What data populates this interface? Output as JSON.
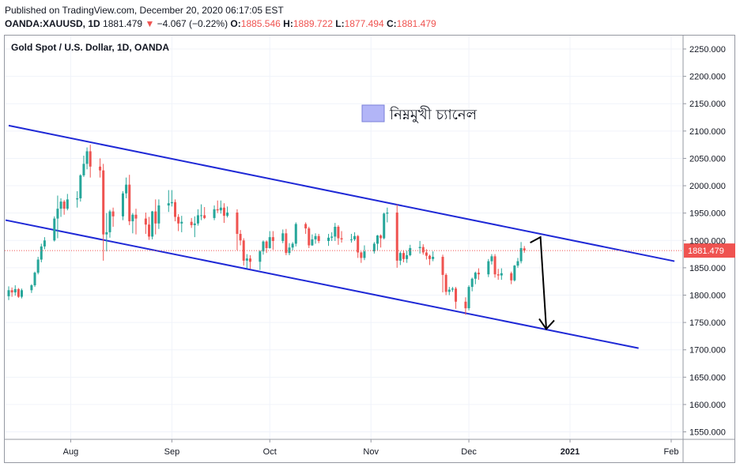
{
  "header": {
    "published": "Published on TradingView.com, December 20, 2020 06:17:05 EST",
    "symbol": "OANDA:XAUUSD, 1D",
    "last": "1881.479",
    "change_arrow": "▼",
    "change": "−4.067 (−0.22%)",
    "o_label": "O:",
    "o_value": "1885.546",
    "h_label": "H:",
    "h_value": "1889.722",
    "l_label": "L:",
    "l_value": "1877.494",
    "c_label": "C:",
    "c_value": "1881.479"
  },
  "chart_title": "Gold Spot / U.S. Dollar, 1D, OANDA",
  "annotation": {
    "text": "নিম্নমুখী চ্যানেল"
  },
  "price_label": "1881.479",
  "colors": {
    "up": "#26a69a",
    "down": "#ef5350",
    "channel": "#1f29d6",
    "legend_fill": "#b2b5f7"
  },
  "chart_data": {
    "type": "candlestick",
    "title": "Gold Spot / U.S. Dollar, 1D, OANDA",
    "ylim": [
      1520,
      2280
    ],
    "y_ticks": [
      "2250.000",
      "2200.000",
      "2150.000",
      "2100.000",
      "2050.000",
      "2000.000",
      "1950.000",
      "1900.000",
      "1850.000",
      "1800.000",
      "1750.000",
      "1700.000",
      "1650.000",
      "1600.000",
      "1550.000"
    ],
    "x_ticks": [
      "Aug",
      "Sep",
      "Oct",
      "Nov",
      "Dec",
      "2021",
      "Feb"
    ],
    "last_price": 1881.479,
    "candles": [
      {
        "d": "2020-07-13",
        "o": 1798,
        "h": 1816,
        "l": 1791,
        "c": 1809
      },
      {
        "d": "2020-07-14",
        "o": 1809,
        "h": 1814,
        "l": 1797,
        "c": 1805
      },
      {
        "d": "2020-07-15",
        "o": 1805,
        "h": 1818,
        "l": 1799,
        "c": 1811
      },
      {
        "d": "2020-07-16",
        "o": 1811,
        "h": 1813,
        "l": 1795,
        "c": 1797
      },
      {
        "d": "2020-07-17",
        "o": 1797,
        "h": 1812,
        "l": 1794,
        "c": 1809
      },
      {
        "d": "2020-07-20",
        "o": 1809,
        "h": 1820,
        "l": 1804,
        "c": 1818
      },
      {
        "d": "2020-07-21",
        "o": 1818,
        "h": 1843,
        "l": 1815,
        "c": 1841
      },
      {
        "d": "2020-07-22",
        "o": 1841,
        "h": 1870,
        "l": 1838,
        "c": 1865
      },
      {
        "d": "2020-07-23",
        "o": 1865,
        "h": 1894,
        "l": 1860,
        "c": 1889
      },
      {
        "d": "2020-07-24",
        "o": 1889,
        "h": 1906,
        "l": 1884,
        "c": 1900
      },
      {
        "d": "2020-07-27",
        "o": 1900,
        "h": 1944,
        "l": 1898,
        "c": 1940
      },
      {
        "d": "2020-07-28",
        "o": 1940,
        "h": 1982,
        "l": 1904,
        "c": 1958
      },
      {
        "d": "2020-07-29",
        "o": 1958,
        "h": 1977,
        "l": 1943,
        "c": 1971
      },
      {
        "d": "2020-07-30",
        "o": 1971,
        "h": 1974,
        "l": 1947,
        "c": 1958
      },
      {
        "d": "2020-07-31",
        "o": 1958,
        "h": 1985,
        "l": 1955,
        "c": 1975
      },
      {
        "d": "2020-08-03",
        "o": 1975,
        "h": 1990,
        "l": 1960,
        "c": 1977
      },
      {
        "d": "2020-08-04",
        "o": 1977,
        "h": 2021,
        "l": 1971,
        "c": 2019
      },
      {
        "d": "2020-08-05",
        "o": 2019,
        "h": 2055,
        "l": 2016,
        "c": 2040
      },
      {
        "d": "2020-08-06",
        "o": 2040,
        "h": 2070,
        "l": 2030,
        "c": 2063
      },
      {
        "d": "2020-08-07",
        "o": 2063,
        "h": 2075,
        "l": 2015,
        "c": 2035
      },
      {
        "d": "2020-08-10",
        "o": 2035,
        "h": 2050,
        "l": 2015,
        "c": 2028
      },
      {
        "d": "2020-08-11",
        "o": 2028,
        "h": 2040,
        "l": 1863,
        "c": 1911
      },
      {
        "d": "2020-08-12",
        "o": 1911,
        "h": 1950,
        "l": 1880,
        "c": 1915
      },
      {
        "d": "2020-08-13",
        "o": 1915,
        "h": 1956,
        "l": 1905,
        "c": 1953
      },
      {
        "d": "2020-08-14",
        "o": 1953,
        "h": 1960,
        "l": 1925,
        "c": 1944
      },
      {
        "d": "2020-08-17",
        "o": 1944,
        "h": 1990,
        "l": 1937,
        "c": 1986
      },
      {
        "d": "2020-08-18",
        "o": 1986,
        "h": 2015,
        "l": 1977,
        "c": 2002
      },
      {
        "d": "2020-08-19",
        "o": 2002,
        "h": 2020,
        "l": 1928,
        "c": 1935
      },
      {
        "d": "2020-08-20",
        "o": 1935,
        "h": 1950,
        "l": 1913,
        "c": 1947
      },
      {
        "d": "2020-08-21",
        "o": 1947,
        "h": 1958,
        "l": 1911,
        "c": 1940
      },
      {
        "d": "2020-08-24",
        "o": 1940,
        "h": 1951,
        "l": 1912,
        "c": 1929
      },
      {
        "d": "2020-08-25",
        "o": 1929,
        "h": 1943,
        "l": 1901,
        "c": 1907
      },
      {
        "d": "2020-08-26",
        "o": 1907,
        "h": 1954,
        "l": 1902,
        "c": 1953
      },
      {
        "d": "2020-08-27",
        "o": 1953,
        "h": 1975,
        "l": 1911,
        "c": 1931
      },
      {
        "d": "2020-08-28",
        "o": 1931,
        "h": 1975,
        "l": 1921,
        "c": 1964
      },
      {
        "d": "2020-08-31",
        "o": 1964,
        "h": 1992,
        "l": 1952,
        "c": 1968
      },
      {
        "d": "2020-09-01",
        "o": 1968,
        "h": 1992,
        "l": 1962,
        "c": 1970
      },
      {
        "d": "2020-09-02",
        "o": 1970,
        "h": 1975,
        "l": 1935,
        "c": 1943
      },
      {
        "d": "2020-09-03",
        "o": 1943,
        "h": 1948,
        "l": 1917,
        "c": 1931
      },
      {
        "d": "2020-09-04",
        "o": 1931,
        "h": 1945,
        "l": 1915,
        "c": 1934
      },
      {
        "d": "2020-09-07",
        "o": 1934,
        "h": 1941,
        "l": 1923,
        "c": 1928
      },
      {
        "d": "2020-09-08",
        "o": 1928,
        "h": 1944,
        "l": 1906,
        "c": 1931
      },
      {
        "d": "2020-09-09",
        "o": 1931,
        "h": 1957,
        "l": 1927,
        "c": 1946
      },
      {
        "d": "2020-09-10",
        "o": 1946,
        "h": 1966,
        "l": 1937,
        "c": 1946
      },
      {
        "d": "2020-09-11",
        "o": 1946,
        "h": 1961,
        "l": 1939,
        "c": 1941
      },
      {
        "d": "2020-09-14",
        "o": 1941,
        "h": 1964,
        "l": 1937,
        "c": 1957
      },
      {
        "d": "2020-09-15",
        "o": 1957,
        "h": 1973,
        "l": 1950,
        "c": 1955
      },
      {
        "d": "2020-09-16",
        "o": 1955,
        "h": 1973,
        "l": 1949,
        "c": 1960
      },
      {
        "d": "2020-09-17",
        "o": 1960,
        "h": 1968,
        "l": 1932,
        "c": 1945
      },
      {
        "d": "2020-09-18",
        "o": 1945,
        "h": 1962,
        "l": 1942,
        "c": 1951
      },
      {
        "d": "2020-09-21",
        "o": 1951,
        "h": 1957,
        "l": 1882,
        "c": 1912
      },
      {
        "d": "2020-09-22",
        "o": 1912,
        "h": 1919,
        "l": 1891,
        "c": 1900
      },
      {
        "d": "2020-09-23",
        "o": 1900,
        "h": 1904,
        "l": 1854,
        "c": 1863
      },
      {
        "d": "2020-09-24",
        "o": 1863,
        "h": 1875,
        "l": 1849,
        "c": 1867
      },
      {
        "d": "2020-09-25",
        "o": 1867,
        "h": 1873,
        "l": 1848,
        "c": 1861
      },
      {
        "d": "2020-09-28",
        "o": 1861,
        "h": 1882,
        "l": 1846,
        "c": 1880
      },
      {
        "d": "2020-09-29",
        "o": 1880,
        "h": 1900,
        "l": 1874,
        "c": 1898
      },
      {
        "d": "2020-09-30",
        "o": 1898,
        "h": 1900,
        "l": 1877,
        "c": 1886
      },
      {
        "d": "2020-10-01",
        "o": 1886,
        "h": 1917,
        "l": 1885,
        "c": 1906
      },
      {
        "d": "2020-10-02",
        "o": 1906,
        "h": 1917,
        "l": 1883,
        "c": 1899
      },
      {
        "d": "2020-10-05",
        "o": 1899,
        "h": 1920,
        "l": 1895,
        "c": 1913
      },
      {
        "d": "2020-10-06",
        "o": 1913,
        "h": 1921,
        "l": 1873,
        "c": 1877
      },
      {
        "d": "2020-10-07",
        "o": 1877,
        "h": 1895,
        "l": 1873,
        "c": 1887
      },
      {
        "d": "2020-10-08",
        "o": 1887,
        "h": 1897,
        "l": 1882,
        "c": 1894
      },
      {
        "d": "2020-10-09",
        "o": 1894,
        "h": 1933,
        "l": 1889,
        "c": 1930
      },
      {
        "d": "2020-10-12",
        "o": 1930,
        "h": 1933,
        "l": 1912,
        "c": 1922
      },
      {
        "d": "2020-10-13",
        "o": 1922,
        "h": 1925,
        "l": 1886,
        "c": 1891
      },
      {
        "d": "2020-10-14",
        "o": 1891,
        "h": 1911,
        "l": 1890,
        "c": 1902
      },
      {
        "d": "2020-10-15",
        "o": 1902,
        "h": 1913,
        "l": 1894,
        "c": 1908
      },
      {
        "d": "2020-10-16",
        "o": 1908,
        "h": 1912,
        "l": 1895,
        "c": 1899
      },
      {
        "d": "2020-10-19",
        "o": 1899,
        "h": 1912,
        "l": 1890,
        "c": 1905
      },
      {
        "d": "2020-10-20",
        "o": 1905,
        "h": 1915,
        "l": 1899,
        "c": 1907
      },
      {
        "d": "2020-10-21",
        "o": 1907,
        "h": 1932,
        "l": 1899,
        "c": 1925
      },
      {
        "d": "2020-10-22",
        "o": 1925,
        "h": 1928,
        "l": 1892,
        "c": 1904
      },
      {
        "d": "2020-10-23",
        "o": 1904,
        "h": 1917,
        "l": 1896,
        "c": 1902
      },
      {
        "d": "2020-10-26",
        "o": 1902,
        "h": 1912,
        "l": 1896,
        "c": 1902
      },
      {
        "d": "2020-10-27",
        "o": 1902,
        "h": 1915,
        "l": 1899,
        "c": 1908
      },
      {
        "d": "2020-10-28",
        "o": 1908,
        "h": 1910,
        "l": 1868,
        "c": 1878
      },
      {
        "d": "2020-10-29",
        "o": 1878,
        "h": 1880,
        "l": 1859,
        "c": 1868
      },
      {
        "d": "2020-10-30",
        "o": 1868,
        "h": 1891,
        "l": 1864,
        "c": 1880
      },
      {
        "d": "2020-11-02",
        "o": 1880,
        "h": 1897,
        "l": 1876,
        "c": 1894
      },
      {
        "d": "2020-11-03",
        "o": 1894,
        "h": 1910,
        "l": 1882,
        "c": 1909
      },
      {
        "d": "2020-11-04",
        "o": 1909,
        "h": 1911,
        "l": 1887,
        "c": 1904
      },
      {
        "d": "2020-11-05",
        "o": 1904,
        "h": 1951,
        "l": 1902,
        "c": 1949
      },
      {
        "d": "2020-11-06",
        "o": 1949,
        "h": 1960,
        "l": 1933,
        "c": 1951
      },
      {
        "d": "2020-11-09",
        "o": 1951,
        "h": 1966,
        "l": 1850,
        "c": 1863
      },
      {
        "d": "2020-11-10",
        "o": 1863,
        "h": 1880,
        "l": 1855,
        "c": 1877
      },
      {
        "d": "2020-11-11",
        "o": 1877,
        "h": 1882,
        "l": 1860,
        "c": 1866
      },
      {
        "d": "2020-11-12",
        "o": 1866,
        "h": 1881,
        "l": 1859,
        "c": 1873
      },
      {
        "d": "2020-11-13",
        "o": 1873,
        "h": 1892,
        "l": 1871,
        "c": 1886
      },
      {
        "d": "2020-11-16",
        "o": 1886,
        "h": 1899,
        "l": 1876,
        "c": 1888
      },
      {
        "d": "2020-11-17",
        "o": 1888,
        "h": 1893,
        "l": 1874,
        "c": 1878
      },
      {
        "d": "2020-11-18",
        "o": 1878,
        "h": 1884,
        "l": 1865,
        "c": 1872
      },
      {
        "d": "2020-11-19",
        "o": 1872,
        "h": 1874,
        "l": 1855,
        "c": 1866
      },
      {
        "d": "2020-11-20",
        "o": 1866,
        "h": 1880,
        "l": 1862,
        "c": 1870
      },
      {
        "d": "2020-11-23",
        "o": 1870,
        "h": 1874,
        "l": 1805,
        "c": 1837
      },
      {
        "d": "2020-11-24",
        "o": 1837,
        "h": 1840,
        "l": 1800,
        "c": 1806
      },
      {
        "d": "2020-11-25",
        "o": 1806,
        "h": 1815,
        "l": 1800,
        "c": 1810
      },
      {
        "d": "2020-11-26",
        "o": 1810,
        "h": 1815,
        "l": 1806,
        "c": 1812
      },
      {
        "d": "2020-11-27",
        "o": 1812,
        "h": 1815,
        "l": 1775,
        "c": 1788
      },
      {
        "d": "2020-11-30",
        "o": 1788,
        "h": 1796,
        "l": 1764,
        "c": 1776
      },
      {
        "d": "2020-12-01",
        "o": 1776,
        "h": 1818,
        "l": 1772,
        "c": 1815
      },
      {
        "d": "2020-12-02",
        "o": 1815,
        "h": 1832,
        "l": 1807,
        "c": 1830
      },
      {
        "d": "2020-12-03",
        "o": 1830,
        "h": 1843,
        "l": 1820,
        "c": 1841
      },
      {
        "d": "2020-12-04",
        "o": 1841,
        "h": 1849,
        "l": 1828,
        "c": 1838
      },
      {
        "d": "2020-12-07",
        "o": 1838,
        "h": 1866,
        "l": 1833,
        "c": 1862
      },
      {
        "d": "2020-12-08",
        "o": 1862,
        "h": 1875,
        "l": 1856,
        "c": 1871
      },
      {
        "d": "2020-12-09",
        "o": 1871,
        "h": 1875,
        "l": 1832,
        "c": 1838
      },
      {
        "d": "2020-12-10",
        "o": 1838,
        "h": 1848,
        "l": 1828,
        "c": 1836
      },
      {
        "d": "2020-12-11",
        "o": 1836,
        "h": 1849,
        "l": 1828,
        "c": 1840
      },
      {
        "d": "2020-12-14",
        "o": 1840,
        "h": 1843,
        "l": 1820,
        "c": 1827
      },
      {
        "d": "2020-12-15",
        "o": 1827,
        "h": 1855,
        "l": 1825,
        "c": 1854
      },
      {
        "d": "2020-12-16",
        "o": 1854,
        "h": 1868,
        "l": 1850,
        "c": 1862
      },
      {
        "d": "2020-12-17",
        "o": 1862,
        "h": 1897,
        "l": 1858,
        "c": 1886
      },
      {
        "d": "2020-12-18",
        "o": 1885.546,
        "h": 1889.722,
        "l": 1877.494,
        "c": 1881.479
      }
    ],
    "channel_upper": [
      [
        "2020-07-13",
        2110
      ],
      [
        "2021-02-02",
        1862
      ]
    ],
    "channel_lower": [
      [
        "2020-07-13",
        1940
      ],
      [
        "2021-01-22",
        1703
      ]
    ],
    "projection_arrow": [
      [
        "2020-12-21",
        1906
      ],
      [
        "2020-12-24",
        1738
      ]
    ]
  }
}
